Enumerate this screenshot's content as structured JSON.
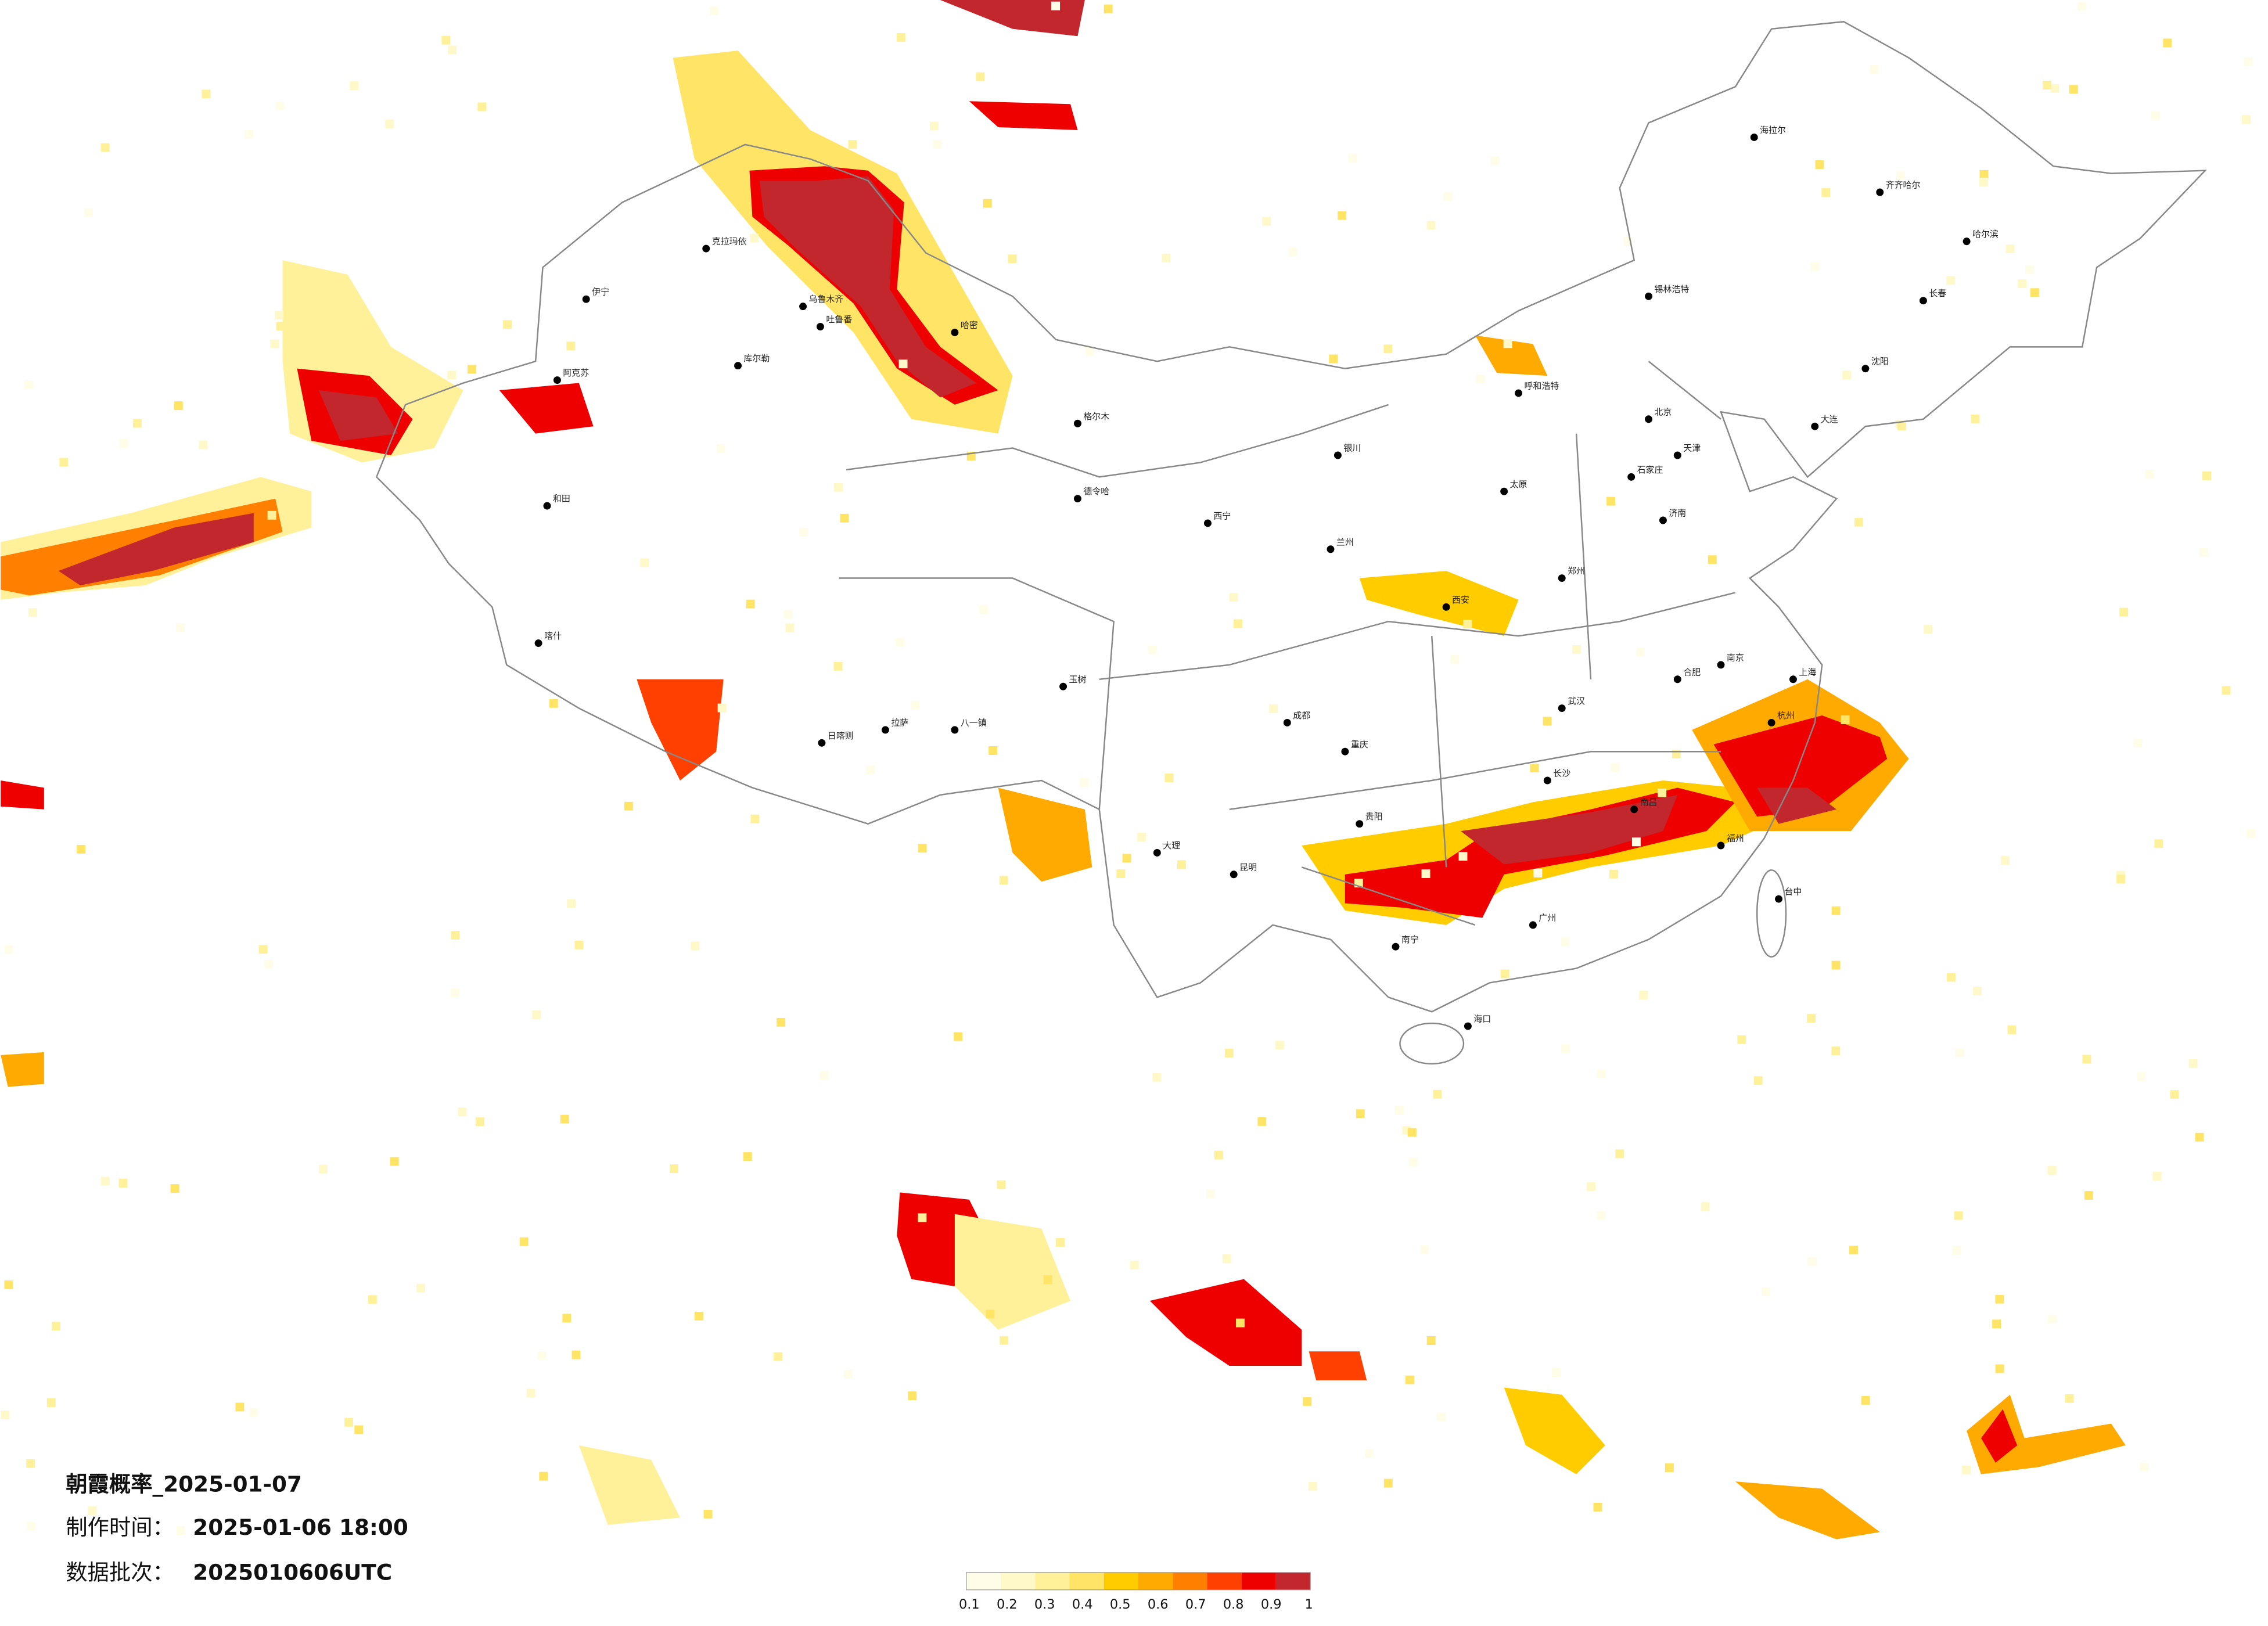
{
  "title": "朝霞概率_2025-01-07",
  "made_label": "制作时间：",
  "made_time": "2025-01-06 18:00",
  "batch_label": "数据批次：",
  "batch": "2025010606UTC",
  "legend": {
    "colors": [
      "#fffce8",
      "#fff8c8",
      "#fff19a",
      "#ffe466",
      "#ffcc00",
      "#ffaa00",
      "#ff7f00",
      "#ff4000",
      "#ee0000",
      "#c1272d"
    ],
    "ticks": [
      0.1,
      0.2,
      0.3,
      0.4,
      0.5,
      0.6,
      0.7,
      0.8,
      0.9,
      1
    ]
  },
  "cities": [
    "伊宁",
    "克拉玛依",
    "乌鲁木齐",
    "吐鲁番",
    "哈密",
    "库尔勒",
    "阿克苏",
    "和田",
    "喀什",
    "格尔木",
    "德令哈",
    "日喀则",
    "拉萨",
    "西宁",
    "兰州",
    "银川",
    "呼和浩特",
    "北京",
    "天津",
    "石家庄",
    "太原",
    "西安",
    "郑州",
    "济南",
    "南京",
    "上海",
    "杭州",
    "合肥",
    "武汉",
    "长沙",
    "南昌",
    "福州",
    "广州",
    "南宁",
    "贵阳",
    "昆明",
    "成都",
    "重庆",
    "海口",
    "台中",
    "海拉尔",
    "齐齐哈尔",
    "哈尔滨",
    "长春",
    "沈阳",
    "大连",
    "锡林浩特",
    "八一镇",
    "玉树",
    "大理"
  ]
}
